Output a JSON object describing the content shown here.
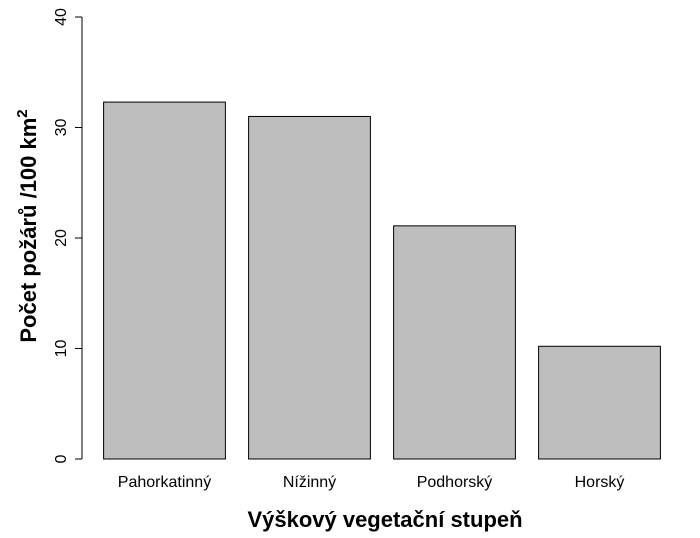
{
  "chart_data": {
    "type": "bar",
    "x_label": "Výškový vegetační stupeň",
    "y_label": "Počet požárů /100 km",
    "y_label_superscript": "2",
    "categories": [
      "Pahorkatinný",
      "Nížinný",
      "Podhorský",
      "Horský"
    ],
    "values": [
      32.3,
      31.0,
      21.1,
      10.2
    ],
    "color": "#bebebe",
    "ylim": [
      0,
      40
    ],
    "yticks": [
      0,
      10,
      20,
      30,
      40
    ],
    "grid": false
  }
}
